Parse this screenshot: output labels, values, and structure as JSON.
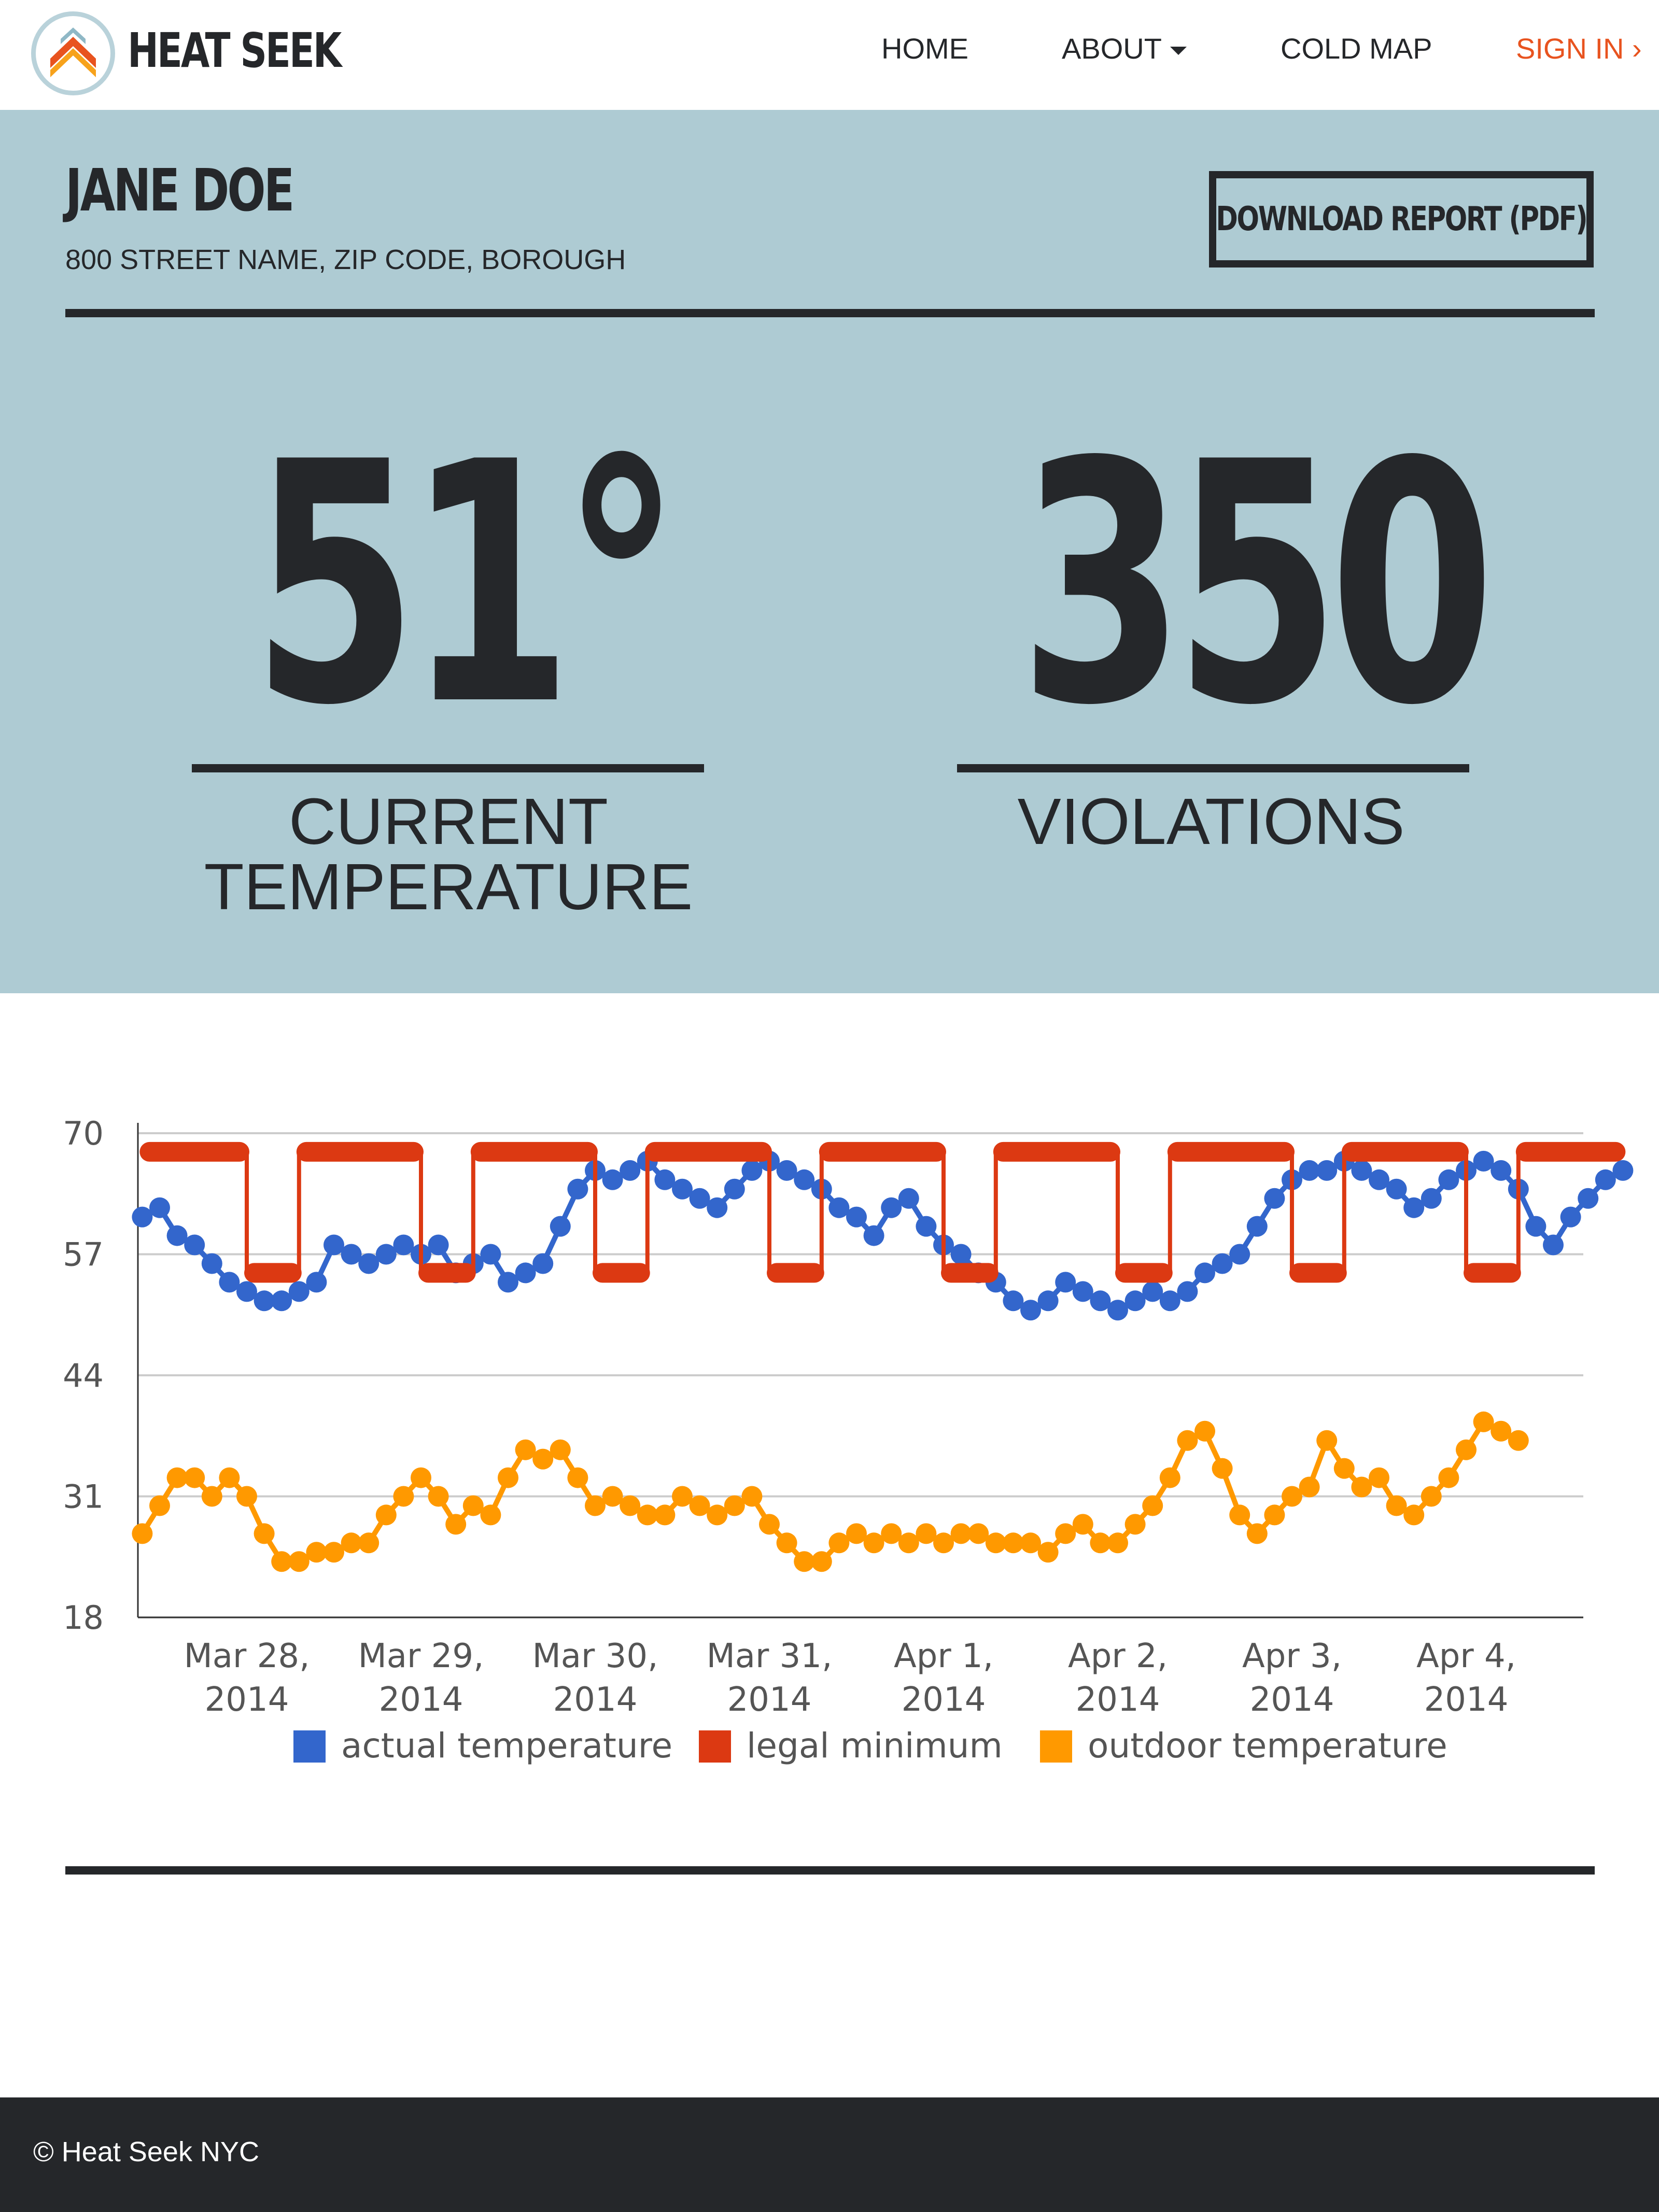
{
  "nav": {
    "brand": "HEAT SEEK",
    "items": [
      {
        "label": "HOME"
      },
      {
        "label": "ABOUT"
      },
      {
        "label": "COLD MAP"
      },
      {
        "label": "SIGN IN ›"
      }
    ],
    "accent_color": "#e8531f"
  },
  "tenant": {
    "name": "JANE DOE",
    "address": "800 STREET NAME, ZIP CODE, BOROUGH",
    "download_label": "DOWNLOAD REPORT (PDF)"
  },
  "stats": {
    "temperature": {
      "value": "51°",
      "label": "CURRENT TEMPERATURE"
    },
    "violations": {
      "value": "350",
      "label": "VIOLATIONS"
    }
  },
  "hero_color": "#aecbd3",
  "chart_data": {
    "type": "line",
    "x_tick_labels": [
      [
        "Mar 28,",
        "2014"
      ],
      [
        "Mar 29,",
        "2014"
      ],
      [
        "Mar 30,",
        "2014"
      ],
      [
        "Mar 31,",
        "2014"
      ],
      [
        "Apr 1,",
        "2014"
      ],
      [
        "Apr 2,",
        "2014"
      ],
      [
        "Apr 3,",
        "2014"
      ],
      [
        "Apr 4,",
        "2014"
      ]
    ],
    "x_range": [
      -0.6,
      7.7
    ],
    "y_ticks": [
      18,
      31,
      44,
      57,
      70
    ],
    "ylim": [
      18,
      70
    ],
    "grid": true,
    "legend_position": "bottom",
    "series": [
      {
        "name": "actual temperature",
        "color": "#3366cc",
        "points": [
          [
            -0.6,
            61
          ],
          [
            -0.5,
            62
          ],
          [
            -0.4,
            59
          ],
          [
            -0.3,
            58
          ],
          [
            -0.2,
            56
          ],
          [
            -0.1,
            54
          ],
          [
            0,
            53
          ],
          [
            0.1,
            52
          ],
          [
            0.2,
            52
          ],
          [
            0.3,
            53
          ],
          [
            0.4,
            54
          ],
          [
            0.5,
            58
          ],
          [
            0.6,
            57
          ],
          [
            0.7,
            56
          ],
          [
            0.8,
            57
          ],
          [
            0.9,
            58
          ],
          [
            1.0,
            57
          ],
          [
            1.1,
            58
          ],
          [
            1.2,
            55
          ],
          [
            1.3,
            56
          ],
          [
            1.4,
            57
          ],
          [
            1.5,
            54
          ],
          [
            1.6,
            55
          ],
          [
            1.7,
            56
          ],
          [
            1.8,
            60
          ],
          [
            1.9,
            64
          ],
          [
            2.0,
            66
          ],
          [
            2.1,
            65
          ],
          [
            2.2,
            66
          ],
          [
            2.3,
            67
          ],
          [
            2.4,
            65
          ],
          [
            2.5,
            64
          ],
          [
            2.6,
            63
          ],
          [
            2.7,
            62
          ],
          [
            2.8,
            64
          ],
          [
            2.9,
            66
          ],
          [
            3.0,
            67
          ],
          [
            3.1,
            66
          ],
          [
            3.2,
            65
          ],
          [
            3.3,
            64
          ],
          [
            3.4,
            62
          ],
          [
            3.5,
            61
          ],
          [
            3.6,
            59
          ],
          [
            3.7,
            62
          ],
          [
            3.8,
            63
          ],
          [
            3.9,
            60
          ],
          [
            4.0,
            58
          ],
          [
            4.1,
            57
          ],
          [
            4.2,
            55
          ],
          [
            4.3,
            54
          ],
          [
            4.4,
            52
          ],
          [
            4.5,
            51
          ],
          [
            4.6,
            52
          ],
          [
            4.7,
            54
          ],
          [
            4.8,
            53
          ],
          [
            4.9,
            52
          ],
          [
            5.0,
            51
          ],
          [
            5.1,
            52
          ],
          [
            5.2,
            53
          ],
          [
            5.3,
            52
          ],
          [
            5.4,
            53
          ],
          [
            5.5,
            55
          ],
          [
            5.6,
            56
          ],
          [
            5.7,
            57
          ],
          [
            5.8,
            60
          ],
          [
            5.9,
            63
          ],
          [
            6.0,
            65
          ],
          [
            6.1,
            66
          ],
          [
            6.2,
            66
          ],
          [
            6.3,
            67
          ],
          [
            6.4,
            66
          ],
          [
            6.5,
            65
          ],
          [
            6.6,
            64
          ],
          [
            6.7,
            62
          ],
          [
            6.8,
            63
          ],
          [
            6.9,
            65
          ],
          [
            7.0,
            66
          ],
          [
            7.1,
            67
          ],
          [
            7.2,
            66
          ],
          [
            7.3,
            64
          ],
          [
            7.4,
            60
          ],
          [
            7.5,
            58
          ],
          [
            7.6,
            61
          ],
          [
            7.7,
            63
          ],
          [
            7.8,
            65
          ],
          [
            7.9,
            66
          ]
        ]
      },
      {
        "name": "legal minimum",
        "color": "#dc3912",
        "segments": [
          [
            -0.6,
            0.0,
            68
          ],
          [
            0.0,
            0.3,
            55
          ],
          [
            0.3,
            1.0,
            68
          ],
          [
            1.0,
            1.3,
            55
          ],
          [
            1.3,
            2.0,
            68
          ],
          [
            2.0,
            2.3,
            55
          ],
          [
            2.3,
            3.0,
            68
          ],
          [
            3.0,
            3.3,
            55
          ],
          [
            3.3,
            4.0,
            68
          ],
          [
            4.0,
            4.3,
            55
          ],
          [
            4.3,
            5.0,
            68
          ],
          [
            5.0,
            5.3,
            55
          ],
          [
            5.3,
            6.0,
            68
          ],
          [
            6.0,
            6.3,
            55
          ],
          [
            6.3,
            7.0,
            68
          ],
          [
            7.0,
            7.3,
            55
          ],
          [
            7.3,
            7.9,
            68
          ]
        ]
      },
      {
        "name": "outdoor temperature",
        "color": "#ff9900",
        "points": [
          [
            -0.6,
            27
          ],
          [
            -0.5,
            30
          ],
          [
            -0.4,
            33
          ],
          [
            -0.3,
            33
          ],
          [
            -0.2,
            31
          ],
          [
            -0.1,
            33
          ],
          [
            0,
            31
          ],
          [
            0.1,
            27
          ],
          [
            0.2,
            24
          ],
          [
            0.3,
            24
          ],
          [
            0.4,
            25
          ],
          [
            0.5,
            25
          ],
          [
            0.6,
            26
          ],
          [
            0.7,
            26
          ],
          [
            0.8,
            29
          ],
          [
            0.9,
            31
          ],
          [
            1.0,
            33
          ],
          [
            1.1,
            31
          ],
          [
            1.2,
            28
          ],
          [
            1.3,
            30
          ],
          [
            1.4,
            29
          ],
          [
            1.5,
            33
          ],
          [
            1.6,
            36
          ],
          [
            1.7,
            35
          ],
          [
            1.8,
            36
          ],
          [
            1.9,
            33
          ],
          [
            2.0,
            30
          ],
          [
            2.1,
            31
          ],
          [
            2.2,
            30
          ],
          [
            2.3,
            29
          ],
          [
            2.4,
            29
          ],
          [
            2.5,
            31
          ],
          [
            2.6,
            30
          ],
          [
            2.7,
            29
          ],
          [
            2.8,
            30
          ],
          [
            2.9,
            31
          ],
          [
            3.0,
            28
          ],
          [
            3.1,
            26
          ],
          [
            3.2,
            24
          ],
          [
            3.3,
            24
          ],
          [
            3.4,
            26
          ],
          [
            3.5,
            27
          ],
          [
            3.6,
            26
          ],
          [
            3.7,
            27
          ],
          [
            3.8,
            26
          ],
          [
            3.9,
            27
          ],
          [
            4.0,
            26
          ],
          [
            4.1,
            27
          ],
          [
            4.2,
            27
          ],
          [
            4.3,
            26
          ],
          [
            4.4,
            26
          ],
          [
            4.5,
            26
          ],
          [
            4.6,
            25
          ],
          [
            4.7,
            27
          ],
          [
            4.8,
            28
          ],
          [
            4.9,
            26
          ],
          [
            5.0,
            26
          ],
          [
            5.1,
            28
          ],
          [
            5.2,
            30
          ],
          [
            5.3,
            33
          ],
          [
            5.4,
            37
          ],
          [
            5.5,
            38
          ],
          [
            5.6,
            34
          ],
          [
            5.7,
            29
          ],
          [
            5.8,
            27
          ],
          [
            5.9,
            29
          ],
          [
            6.0,
            31
          ],
          [
            6.1,
            32
          ],
          [
            6.2,
            37
          ],
          [
            6.3,
            34
          ],
          [
            6.4,
            32
          ],
          [
            6.5,
            33
          ],
          [
            6.6,
            30
          ],
          [
            6.7,
            29
          ],
          [
            6.8,
            31
          ],
          [
            6.9,
            33
          ],
          [
            7.0,
            36
          ],
          [
            7.1,
            39
          ],
          [
            7.2,
            38
          ],
          [
            7.3,
            37
          ]
        ]
      }
    ]
  },
  "footer": {
    "text": "© Heat Seek NYC"
  }
}
